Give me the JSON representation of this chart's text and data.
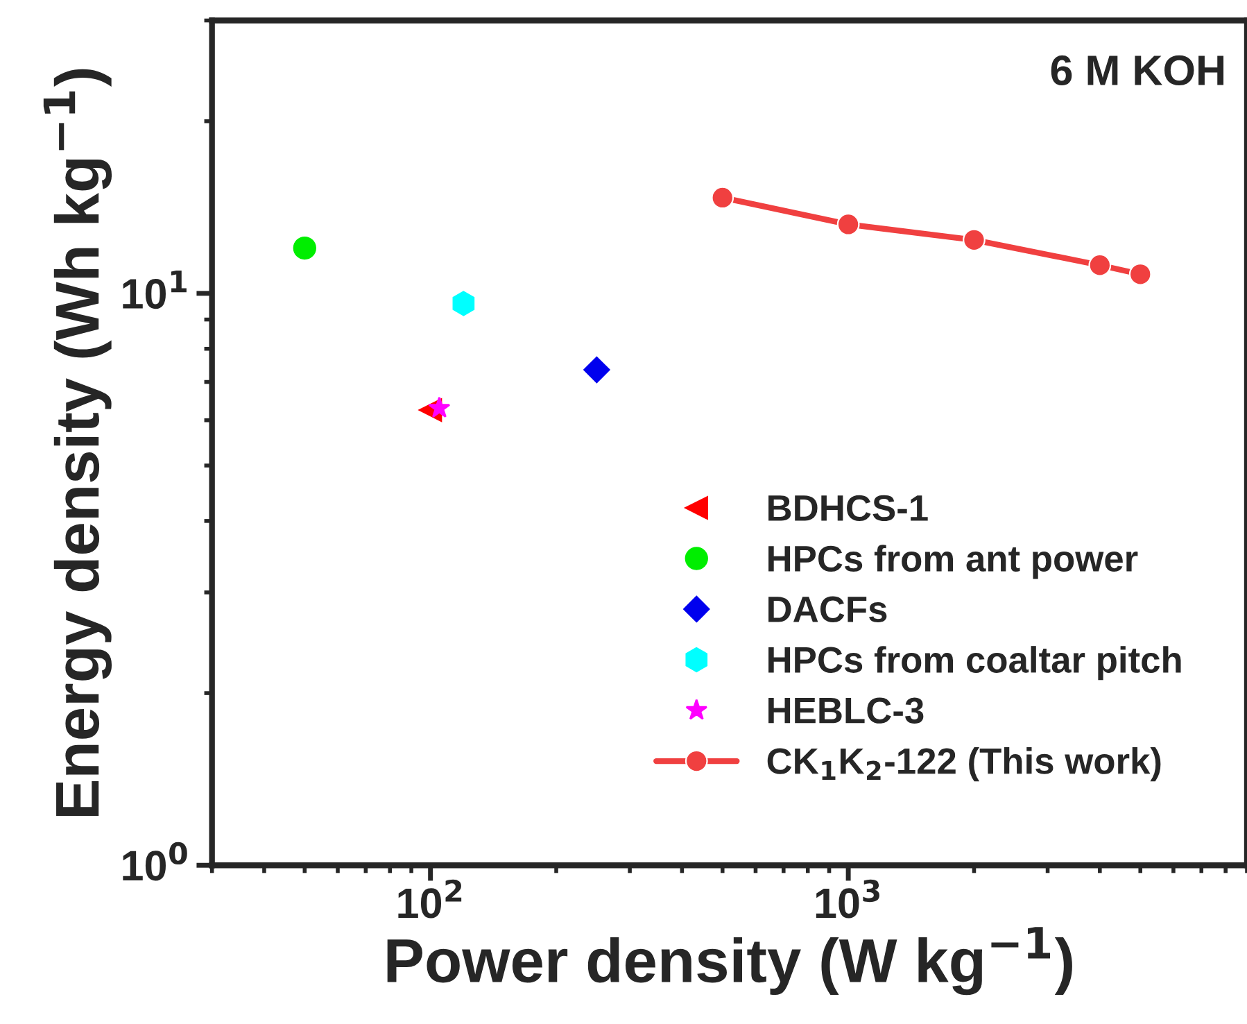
{
  "chart_data": {
    "type": "scatter",
    "xlabel": "Power density (W kg$^{−1}$)",
    "ylabel": "Energy density (Wh kg$^{−1}$)",
    "annotations": [
      "6 M KOH"
    ],
    "log": "xy",
    "xlim": [
      30,
      9000
    ],
    "ylim": [
      1,
      30
    ],
    "xticks": [
      {
        "value": 100,
        "label": "10$^{2}$"
      },
      {
        "value": 1000,
        "label": "10$^{3}$"
      }
    ],
    "yticks": [
      {
        "value": 1,
        "label": "10$^{0}$"
      },
      {
        "value": 10,
        "label": "10$^{1}$"
      }
    ],
    "grid": false,
    "legend": "bottom right",
    "series": [
      {
        "name": "BDHCS-1",
        "color": "#ff0000",
        "marker": "triangle_left",
        "x": [
          100
        ],
        "values": [
          6.25
        ]
      },
      {
        "name": "HPCs from ant power",
        "color": "#00ee00",
        "marker": "circle",
        "x": [
          50
        ],
        "values": [
          12.0
        ]
      },
      {
        "name": "DACFs",
        "color": "#0000ee",
        "marker": "diamond",
        "x": [
          250
        ],
        "values": [
          7.35
        ]
      },
      {
        "name": "HPCs from coaltar pitch",
        "color": "#00ffff",
        "x": [
          120
        ],
        "values": [
          9.6
        ]
      },
      {
        "name": "HEBLC-3",
        "color": "#ff00ff",
        "marker": "star",
        "x": [
          105
        ],
        "values": [
          6.3
        ]
      },
      {
        "name": "CK$_{1}$K$_{2}$-122 (This work)",
        "type": "line",
        "color": "#f04040",
        "marker": "circle",
        "x": [
          500,
          1000,
          2000,
          4000,
          5000
        ],
        "values": [
          14.7,
          13.2,
          12.4,
          11.2,
          10.8
        ]
      }
    ]
  }
}
